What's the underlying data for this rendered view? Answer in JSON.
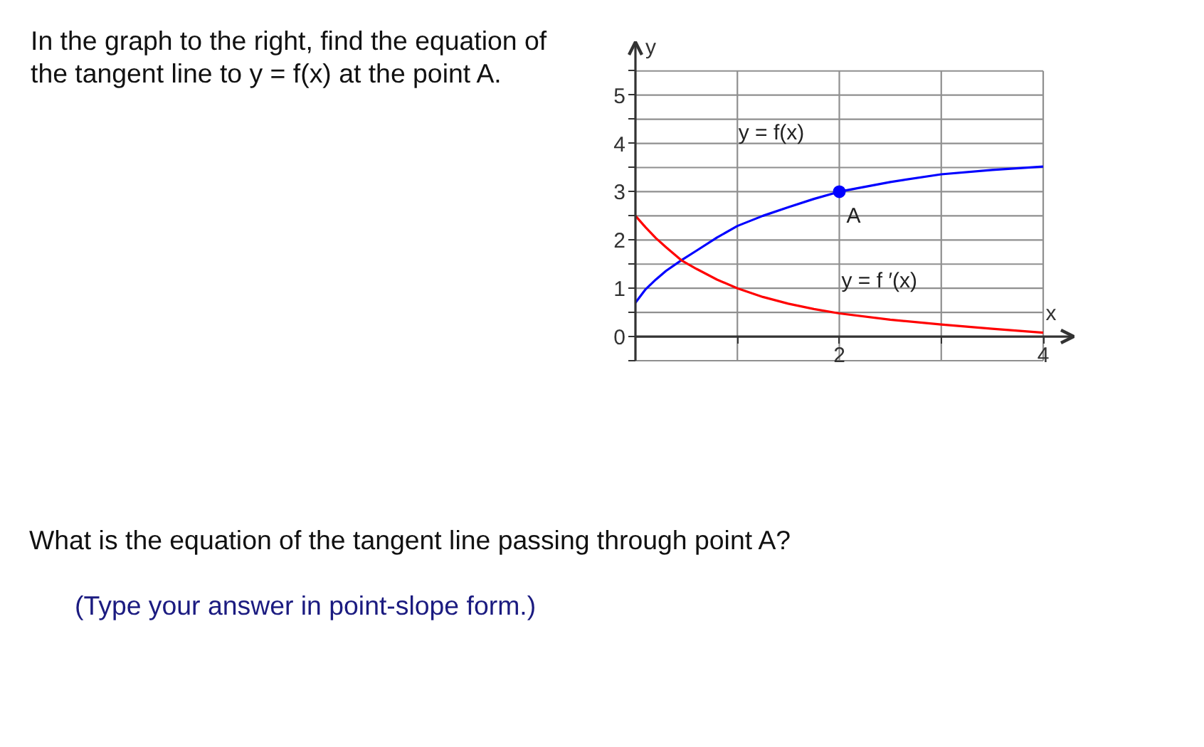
{
  "chart_data": {
    "type": "line",
    "title": "In the graph to the right, find the equation of the tangent line to y = f(x) at the point A.",
    "xlabel": "x",
    "ylabel": "y",
    "series": [
      {
        "name": "y = f(x)",
        "color": "#0000ff",
        "x": [
          0,
          0.1,
          0.2,
          0.3,
          0.45,
          0.6,
          0.8,
          1,
          1.25,
          1.5,
          1.75,
          2,
          2.5,
          3,
          3.5,
          4
        ],
        "values": [
          0.7,
          0.98,
          1.18,
          1.36,
          1.58,
          1.78,
          2.05,
          2.29,
          2.5,
          2.68,
          2.85,
          3.0,
          3.2,
          3.36,
          3.45,
          3.52
        ]
      },
      {
        "name": "y = f ′(x)",
        "color": "#ff0000",
        "x": [
          0,
          0.1,
          0.2,
          0.3,
          0.45,
          0.6,
          0.8,
          1,
          1.25,
          1.5,
          1.75,
          2,
          2.5,
          3,
          3.5,
          4
        ],
        "values": [
          2.5,
          2.26,
          2.04,
          1.85,
          1.58,
          1.4,
          1.18,
          1.0,
          0.82,
          0.68,
          0.57,
          0.48,
          0.35,
          0.25,
          0.16,
          0.08
        ]
      },
      {
        "type": "scatter",
        "color": "#0000ff",
        "x": [
          2
        ],
        "values": [
          3
        ]
      }
    ],
    "annotations": [
      {
        "text": "A",
        "x": 2,
        "y": 3
      },
      "What is the equation of the tangent line passing through point A?",
      "(Type your answer in point-slope form.)"
    ],
    "xlim": [
      0,
      4.3
    ],
    "ylim": [
      -0.5,
      6.1
    ],
    "xticks": [
      {
        "value": 0,
        "label": null
      },
      {
        "value": 1,
        "label": null
      },
      2,
      {
        "value": 3,
        "label": null
      },
      4
    ],
    "yticks": [
      {
        "value": -0.5,
        "label": null
      },
      0,
      {
        "value": 0.5,
        "label": null
      },
      1,
      {
        "value": 1.5,
        "label": null
      },
      2,
      {
        "value": 2.5,
        "label": null
      },
      3,
      {
        "value": 3.5,
        "label": null
      },
      4,
      {
        "value": 4.5,
        "label": null
      },
      5,
      {
        "value": 5.5,
        "label": null
      }
    ],
    "grid": true
  }
}
